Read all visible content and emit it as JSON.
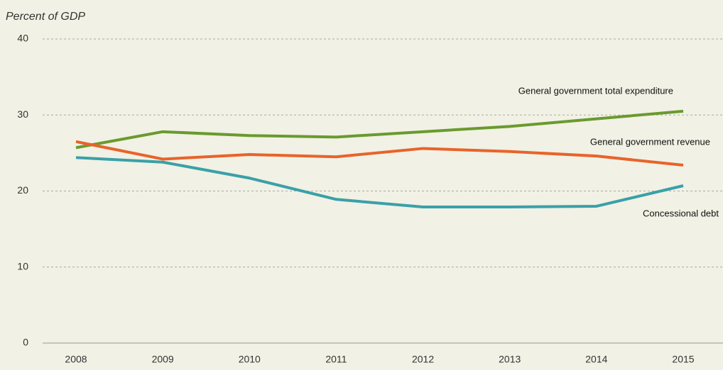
{
  "chart_data": {
    "type": "line",
    "y_label": "Percent of GDP",
    "categories": [
      "2008",
      "2009",
      "2010",
      "2011",
      "2012",
      "2013",
      "2014",
      "2015"
    ],
    "series": [
      {
        "name": "General government total expenditure",
        "color": "#6a9a2e",
        "values": [
          25.7,
          27.8,
          27.3,
          27.1,
          27.8,
          28.5,
          29.5,
          30.5
        ]
      },
      {
        "name": "General government revenue",
        "color": "#e8632a",
        "values": [
          26.5,
          24.2,
          24.8,
          24.5,
          25.6,
          25.2,
          24.6,
          23.4
        ]
      },
      {
        "name": "Concessional debt",
        "color": "#3aa0a8",
        "values": [
          24.4,
          23.8,
          21.7,
          18.9,
          17.9,
          17.9,
          18.0,
          20.7
        ]
      }
    ],
    "ylim": [
      0,
      40
    ],
    "yticks": [
      0,
      10,
      20,
      30,
      40
    ],
    "grid": true
  }
}
